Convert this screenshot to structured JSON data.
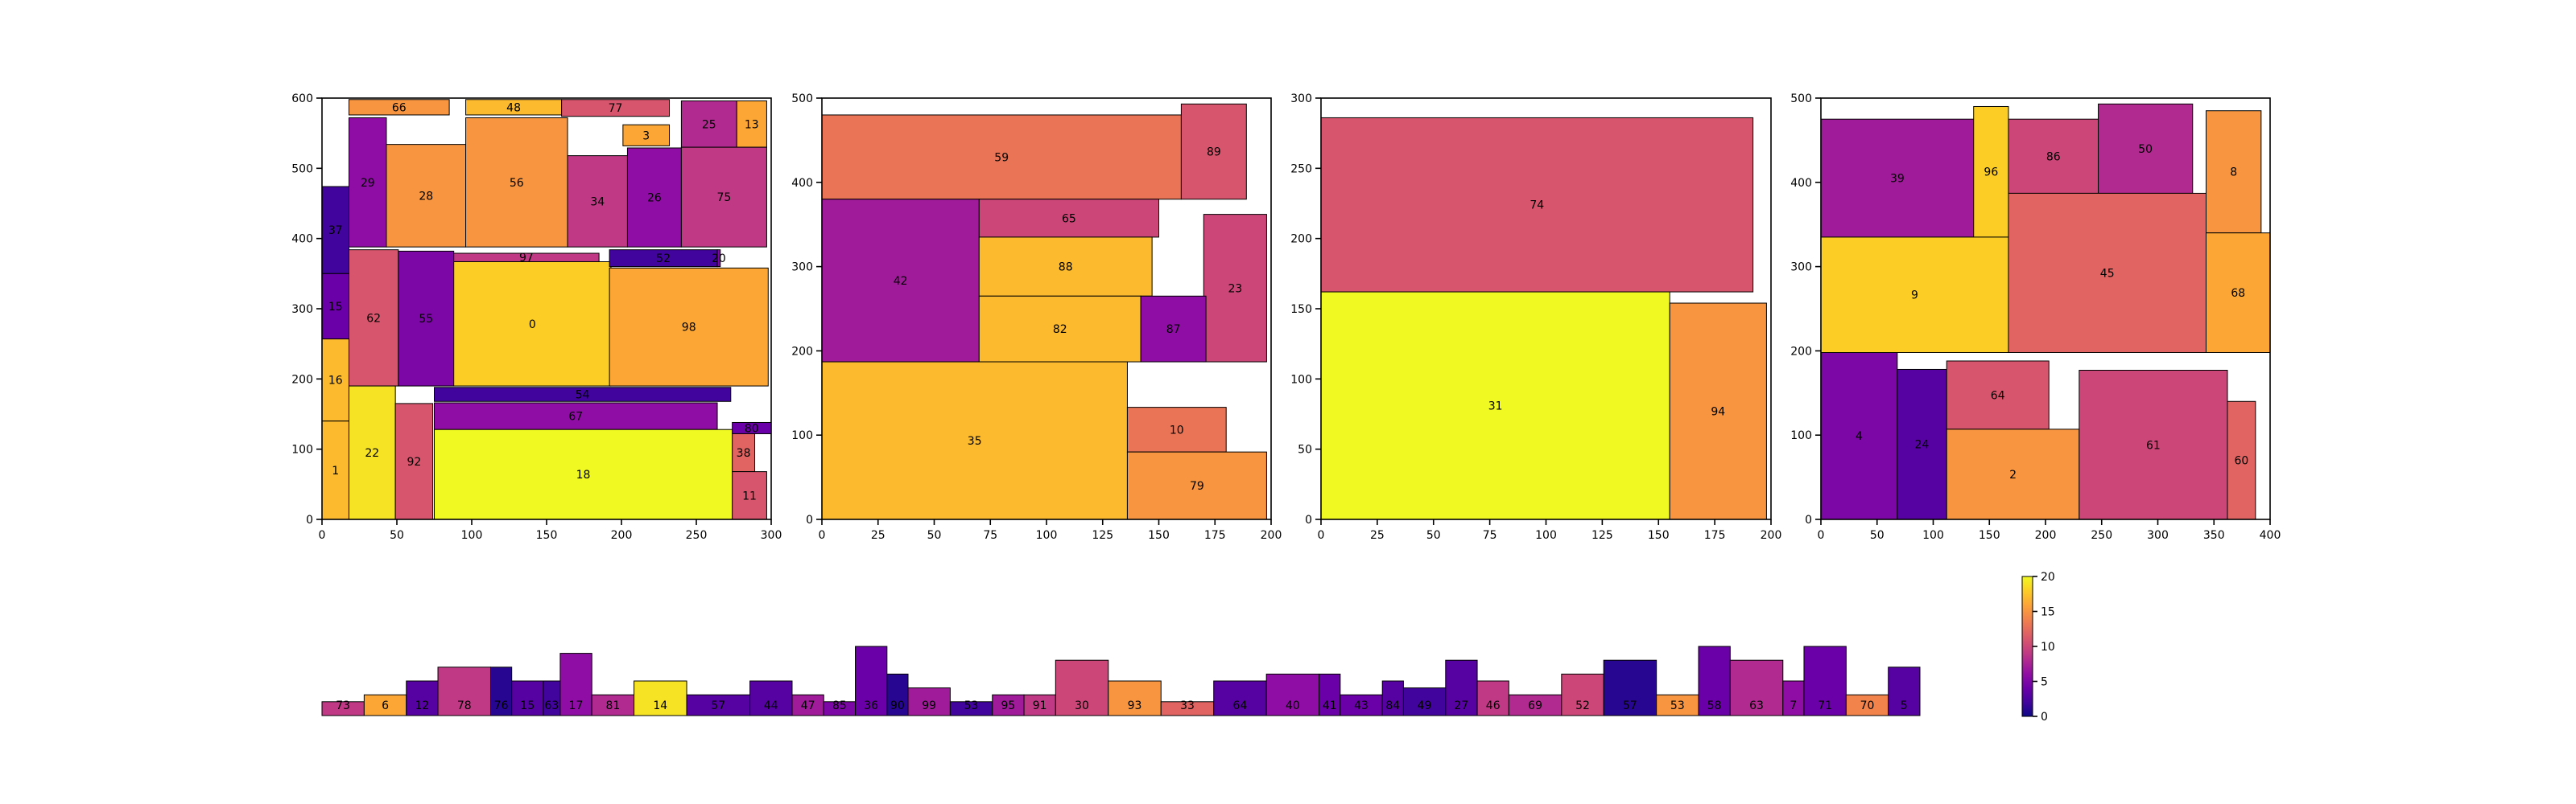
{
  "chart_data": [
    {
      "type": "treemap",
      "xlim": [
        0,
        300
      ],
      "ylim": [
        0,
        600
      ],
      "xticks": [
        "0",
        "50",
        "100",
        "150",
        "200",
        "250",
        "300"
      ],
      "yticks": [
        "0",
        "100",
        "200",
        "300",
        "400",
        "500",
        "600"
      ],
      "rects": [
        {
          "label": "66",
          "x": 18,
          "y": 576,
          "w": 67,
          "h": 22,
          "v": 15
        },
        {
          "label": "48",
          "x": 96,
          "y": 576,
          "w": 64,
          "h": 22,
          "v": 17
        },
        {
          "label": "77",
          "x": 160,
          "y": 574,
          "w": 72,
          "h": 24,
          "v": 11
        },
        {
          "label": "3",
          "x": 201,
          "y": 532,
          "w": 31,
          "h": 30,
          "v": 16
        },
        {
          "label": "25",
          "x": 240,
          "y": 530,
          "w": 37,
          "h": 66,
          "v": 8
        },
        {
          "label": "13",
          "x": 277,
          "y": 530,
          "w": 20,
          "h": 66,
          "v": 16
        },
        {
          "label": "29",
          "x": 18,
          "y": 388,
          "w": 25,
          "h": 184,
          "v": 6
        },
        {
          "label": "28",
          "x": 43,
          "y": 388,
          "w": 53,
          "h": 146,
          "v": 15
        },
        {
          "label": "56",
          "x": 96,
          "y": 388,
          "w": 68,
          "h": 184,
          "v": 15
        },
        {
          "label": "34",
          "x": 164,
          "y": 388,
          "w": 40,
          "h": 130,
          "v": 9
        },
        {
          "label": "26",
          "x": 204,
          "y": 388,
          "w": 36,
          "h": 141,
          "v": 6
        },
        {
          "label": "75",
          "x": 240,
          "y": 388,
          "w": 57,
          "h": 142,
          "v": 9
        },
        {
          "label": "37",
          "x": 0,
          "y": 350,
          "w": 18,
          "h": 124,
          "v": 2
        },
        {
          "label": "15",
          "x": 0,
          "y": 257,
          "w": 18,
          "h": 93,
          "v": 4
        },
        {
          "label": "62",
          "x": 18,
          "y": 190,
          "w": 33,
          "h": 194,
          "v": 11
        },
        {
          "label": "55",
          "x": 51,
          "y": 190,
          "w": 37,
          "h": 192,
          "v": 5
        },
        {
          "label": "97",
          "x": 88,
          "y": 367,
          "w": 97,
          "h": 12,
          "v": 9
        },
        {
          "label": "0",
          "x": 88,
          "y": 190,
          "w": 105,
          "h": 177,
          "v": 18
        },
        {
          "label": "52",
          "x": 192,
          "y": 360,
          "w": 72,
          "h": 24,
          "v": 2
        },
        {
          "label": "20",
          "x": 264,
          "y": 360,
          "w": 2,
          "h": 24,
          "v": 5
        },
        {
          "label": "98",
          "x": 192,
          "y": 190,
          "w": 106,
          "h": 168,
          "v": 16
        },
        {
          "label": "16",
          "x": 0,
          "y": 140,
          "w": 18,
          "h": 117,
          "v": 17
        },
        {
          "label": "1",
          "x": 0,
          "y": 0,
          "w": 18,
          "h": 140,
          "v": 17
        },
        {
          "label": "22",
          "x": 18,
          "y": 0,
          "w": 31,
          "h": 190,
          "v": 19
        },
        {
          "label": "92",
          "x": 49,
          "y": 0,
          "w": 25,
          "h": 165,
          "v": 11
        },
        {
          "label": "54",
          "x": 75,
          "y": 168,
          "w": 198,
          "h": 20,
          "v": 2
        },
        {
          "label": "67",
          "x": 75,
          "y": 128,
          "w": 189,
          "h": 38,
          "v": 6
        },
        {
          "label": "18",
          "x": 75,
          "y": 0,
          "w": 199,
          "h": 128,
          "v": 20
        },
        {
          "label": "80",
          "x": 274,
          "y": 122,
          "w": 26,
          "h": 16,
          "v": 4
        },
        {
          "label": "38",
          "x": 274,
          "y": 68,
          "w": 15,
          "h": 54,
          "v": 12
        },
        {
          "label": "11",
          "x": 274,
          "y": 0,
          "w": 23,
          "h": 68,
          "v": 11
        }
      ]
    },
    {
      "type": "treemap",
      "xlim": [
        0,
        200
      ],
      "ylim": [
        0,
        500
      ],
      "xticks": [
        "0",
        "25",
        "50",
        "75",
        "100",
        "125",
        "150",
        "175",
        "200"
      ],
      "yticks": [
        "0",
        "100",
        "200",
        "300",
        "400",
        "500"
      ],
      "rects": [
        {
          "label": "59",
          "x": 0,
          "y": 380,
          "w": 160,
          "h": 100,
          "v": 13
        },
        {
          "label": "89",
          "x": 160,
          "y": 380,
          "w": 29,
          "h": 113,
          "v": 11
        },
        {
          "label": "42",
          "x": 0,
          "y": 187,
          "w": 70,
          "h": 193,
          "v": 7
        },
        {
          "label": "65",
          "x": 70,
          "y": 335,
          "w": 80,
          "h": 45,
          "v": 10
        },
        {
          "label": "88",
          "x": 70,
          "y": 265,
          "w": 77,
          "h": 70,
          "v": 17
        },
        {
          "label": "23",
          "x": 170,
          "y": 187,
          "w": 28,
          "h": 175,
          "v": 10
        },
        {
          "label": "82",
          "x": 70,
          "y": 187,
          "w": 72,
          "h": 78,
          "v": 17
        },
        {
          "label": "87",
          "x": 142,
          "y": 187,
          "w": 29,
          "h": 78,
          "v": 6
        },
        {
          "label": "35",
          "x": 0,
          "y": 0,
          "w": 136,
          "h": 187,
          "v": 17
        },
        {
          "label": "10",
          "x": 136,
          "y": 80,
          "w": 44,
          "h": 53,
          "v": 13
        },
        {
          "label": "79",
          "x": 136,
          "y": 0,
          "w": 62,
          "h": 80,
          "v": 15
        }
      ]
    },
    {
      "type": "treemap",
      "xlim": [
        0,
        200
      ],
      "ylim": [
        0,
        300
      ],
      "xticks": [
        "0",
        "25",
        "50",
        "75",
        "100",
        "125",
        "150",
        "175",
        "200"
      ],
      "yticks": [
        "0",
        "50",
        "100",
        "150",
        "200",
        "250",
        "300"
      ],
      "rects": [
        {
          "label": "74",
          "x": 0,
          "y": 162,
          "w": 192,
          "h": 124,
          "v": 11
        },
        {
          "label": "31",
          "x": 0,
          "y": 0,
          "w": 155,
          "h": 162,
          "v": 20
        },
        {
          "label": "94",
          "x": 155,
          "y": 0,
          "w": 43,
          "h": 154,
          "v": 15
        }
      ]
    },
    {
      "type": "treemap",
      "xlim": [
        0,
        400
      ],
      "ylim": [
        0,
        500
      ],
      "xticks": [
        "0",
        "50",
        "100",
        "150",
        "200",
        "250",
        "300",
        "350",
        "400"
      ],
      "yticks": [
        "0",
        "100",
        "200",
        "300",
        "400",
        "500"
      ],
      "rects": [
        {
          "label": "39",
          "x": 0,
          "y": 335,
          "w": 136,
          "h": 140,
          "v": 7
        },
        {
          "label": "96",
          "x": 136,
          "y": 335,
          "w": 31,
          "h": 155,
          "v": 18
        },
        {
          "label": "86",
          "x": 167,
          "y": 387,
          "w": 80,
          "h": 88,
          "v": 10
        },
        {
          "label": "50",
          "x": 247,
          "y": 387,
          "w": 84,
          "h": 106,
          "v": 8
        },
        {
          "label": "8",
          "x": 343,
          "y": 340,
          "w": 49,
          "h": 145,
          "v": 15
        },
        {
          "label": "9",
          "x": 0,
          "y": 198,
          "w": 167,
          "h": 137,
          "v": 18
        },
        {
          "label": "45",
          "x": 167,
          "y": 198,
          "w": 176,
          "h": 189,
          "v": 12
        },
        {
          "label": "68",
          "x": 343,
          "y": 198,
          "w": 57,
          "h": 142,
          "v": 16
        },
        {
          "label": "4",
          "x": 0,
          "y": 0,
          "w": 68,
          "h": 198,
          "v": 5
        },
        {
          "label": "24",
          "x": 68,
          "y": 0,
          "w": 44,
          "h": 178,
          "v": 3
        },
        {
          "label": "64",
          "x": 112,
          "y": 107,
          "w": 91,
          "h": 81,
          "v": 11
        },
        {
          "label": "2",
          "x": 112,
          "y": 0,
          "w": 118,
          "h": 107,
          "v": 15
        },
        {
          "label": "61",
          "x": 230,
          "y": 0,
          "w": 132,
          "h": 177,
          "v": 10
        },
        {
          "label": "60",
          "x": 362,
          "y": 0,
          "w": 25,
          "h": 140,
          "v": 12
        }
      ]
    },
    {
      "type": "bar",
      "categories": [
        "73",
        "6",
        "12",
        "78",
        "76",
        "15",
        "63",
        "17",
        "81",
        "14",
        "57",
        "44",
        "47",
        "85",
        "36",
        "90",
        "99",
        "53",
        "95",
        "91",
        "30",
        "93",
        "33",
        "64",
        "40",
        "41",
        "43",
        "84",
        "49",
        "27",
        "46",
        "69",
        "52",
        "57",
        "53",
        "58",
        "63",
        "7",
        "71",
        "70",
        "5"
      ],
      "values": [
        2,
        3,
        5,
        7,
        7,
        5,
        5,
        9,
        3,
        5,
        3,
        5,
        3,
        2,
        10,
        6,
        4,
        2,
        3,
        3,
        8,
        5,
        2,
        5,
        6,
        6,
        3,
        5,
        4,
        8,
        5,
        3,
        6,
        8,
        3,
        10,
        8,
        5,
        10,
        3,
        7
      ],
      "colors": [
        9,
        16,
        3,
        9,
        1,
        3,
        2,
        6,
        8,
        19,
        3,
        3,
        7,
        5,
        4,
        1,
        7,
        2,
        7,
        9,
        10,
        15,
        12,
        3,
        6,
        4,
        4,
        3,
        2,
        3,
        9,
        8,
        10,
        1,
        15,
        4,
        8,
        6,
        4,
        14,
        3
      ],
      "widths": [
        2,
        2,
        1.5,
        2.5,
        1,
        1.5,
        0.8,
        1.5,
        2,
        2.5,
        3,
        2,
        1.5,
        1.5,
        1.5,
        1,
        2,
        2,
        1.5,
        1.5,
        2.5,
        2.5,
        2.5,
        2.5,
        2.5,
        1,
        2,
        1,
        2,
        1.5,
        1.5,
        2.5,
        2,
        2.5,
        2,
        1.5,
        2.5,
        1,
        2,
        2,
        1.5
      ]
    }
  ],
  "colorbar": {
    "ticks": [
      "0",
      "5",
      "10",
      "15",
      "20"
    ],
    "vmin": 0,
    "vmax": 20
  }
}
